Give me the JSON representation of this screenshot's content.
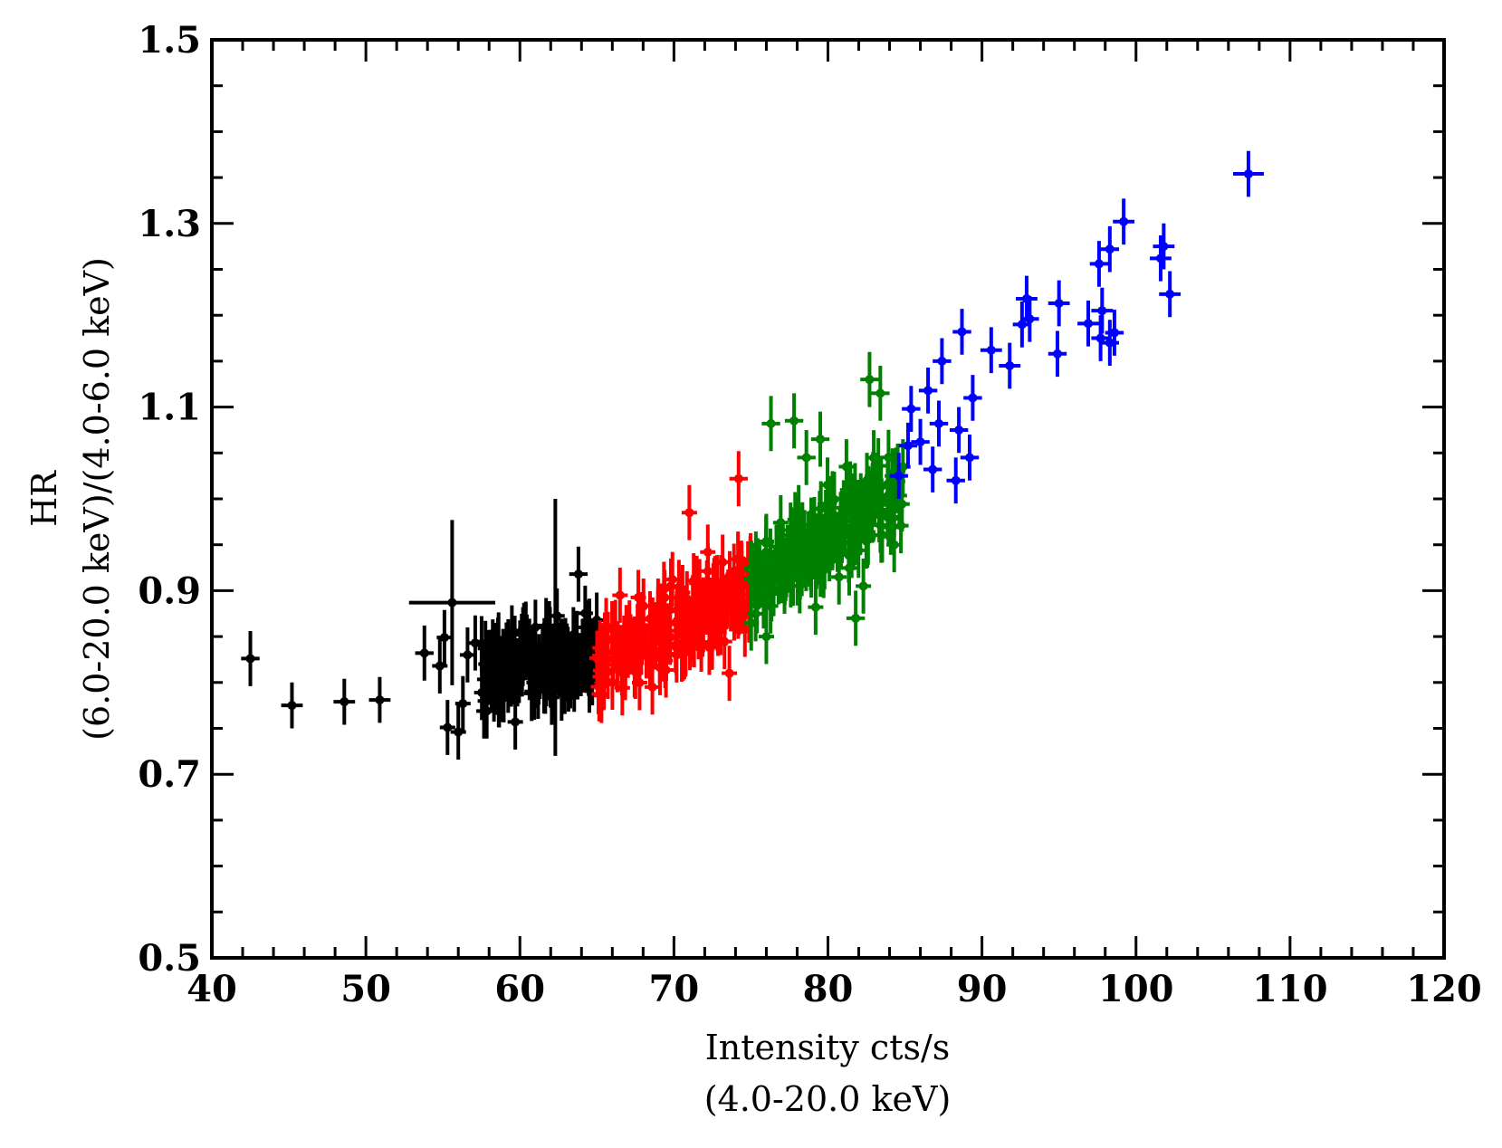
{
  "chart_data": {
    "type": "scatter",
    "title": "",
    "xlabel": [
      "Intensity cts/s",
      "(4.0-20.0 keV)"
    ],
    "ylabel": [
      "HR",
      "(6.0-20.0 keV)/(4.0-6.0 keV)"
    ],
    "xlim": [
      40,
      120
    ],
    "ylim": [
      0.5,
      1.5
    ],
    "x_ticks": [
      40,
      50,
      60,
      70,
      80,
      90,
      100,
      110,
      120
    ],
    "y_ticks": [
      0.5,
      0.7,
      0.9,
      1.1,
      1.3,
      1.5
    ],
    "x_tick_labels": [
      "40",
      "50",
      "60",
      "70",
      "80",
      "90",
      "100",
      "110",
      "120"
    ],
    "y_tick_labels": [
      "0.5",
      "0.7",
      "0.9",
      "1.1",
      "1.3",
      "1.5"
    ],
    "grid": false,
    "error_bars": true,
    "series": [
      {
        "name": "black",
        "color": "#000000",
        "points": [
          [
            42.5,
            0.826,
            0.6,
            0.03
          ],
          [
            45.2,
            0.775,
            0.7,
            0.025
          ],
          [
            48.6,
            0.779,
            0.7,
            0.025
          ],
          [
            50.9,
            0.781,
            0.7,
            0.025
          ],
          [
            55.6,
            0.887,
            2.8,
            0.09
          ],
          [
            62.3,
            0.86,
            0.5,
            0.14
          ],
          [
            63.8,
            0.918,
            0.6,
            0.03
          ],
          [
            53.8,
            0.832,
            0.6,
            0.03
          ],
          [
            54.8,
            0.818,
            0.5,
            0.03
          ],
          [
            55.1,
            0.849,
            0.5,
            0.03
          ],
          [
            55.3,
            0.751,
            0.5,
            0.03
          ],
          [
            56.0,
            0.746,
            0.5,
            0.03
          ],
          [
            56.3,
            0.777,
            0.5,
            0.03
          ],
          [
            56.6,
            0.83,
            0.5,
            0.03
          ],
          [
            57.1,
            0.843,
            0.5,
            0.03
          ],
          [
            57.8,
            0.82,
            0.5,
            0.03
          ],
          [
            58.4,
            0.835,
            0.5,
            0.03
          ],
          [
            58.9,
            0.812,
            0.5,
            0.03
          ],
          [
            59.7,
            0.757,
            0.5,
            0.03
          ],
          [
            60.2,
            0.852,
            0.5,
            0.03
          ],
          [
            60.8,
            0.83,
            0.5,
            0.03
          ],
          [
            61.3,
            0.812,
            0.5,
            0.03
          ],
          [
            61.7,
            0.862,
            0.5,
            0.03
          ],
          [
            62.1,
            0.79,
            0.5,
            0.03
          ],
          [
            62.6,
            0.835,
            0.5,
            0.03
          ],
          [
            63.2,
            0.815,
            0.5,
            0.03
          ],
          [
            63.7,
            0.848,
            0.5,
            0.03
          ],
          [
            64.3,
            0.828,
            0.5,
            0.03
          ],
          [
            64.7,
            0.805,
            0.5,
            0.03
          ]
        ]
      },
      {
        "name": "red",
        "color": "#ff0000",
        "points": [
          [
            74.2,
            1.022,
            0.6,
            0.03
          ],
          [
            71.0,
            0.985,
            0.5,
            0.03
          ],
          [
            66.5,
            0.895,
            0.5,
            0.03
          ],
          [
            67.5,
            0.812,
            0.5,
            0.03
          ],
          [
            68.6,
            0.795,
            0.5,
            0.03
          ],
          [
            69.8,
            0.905,
            0.5,
            0.03
          ],
          [
            70.6,
            0.832,
            0.5,
            0.03
          ],
          [
            72.2,
            0.942,
            0.5,
            0.03
          ],
          [
            72.9,
            0.875,
            0.5,
            0.03
          ],
          [
            73.6,
            0.81,
            0.5,
            0.03
          ],
          [
            74.4,
            0.922,
            0.5,
            0.03
          ],
          [
            65.6,
            0.862,
            0.5,
            0.03
          ]
        ]
      },
      {
        "name": "green",
        "color": "#008000",
        "points": [
          [
            76.3,
            1.082,
            0.6,
            0.03
          ],
          [
            77.8,
            1.085,
            0.6,
            0.03
          ],
          [
            78.6,
            1.045,
            0.6,
            0.03
          ],
          [
            79.5,
            1.065,
            0.6,
            0.03
          ],
          [
            82.7,
            1.13,
            0.6,
            0.03
          ],
          [
            83.4,
            1.115,
            0.6,
            0.03
          ],
          [
            81.8,
            0.87,
            0.6,
            0.03
          ],
          [
            76.0,
            0.85,
            0.5,
            0.03
          ],
          [
            77.2,
            0.915,
            0.5,
            0.03
          ],
          [
            78.1,
            0.985,
            0.5,
            0.03
          ],
          [
            79.2,
            0.882,
            0.5,
            0.03
          ],
          [
            80.3,
            0.955,
            0.5,
            0.03
          ],
          [
            81.2,
            1.035,
            0.5,
            0.03
          ],
          [
            82.3,
            0.905,
            0.5,
            0.03
          ],
          [
            83.5,
            0.985,
            0.5,
            0.03
          ],
          [
            84.3,
            0.95,
            0.5,
            0.03
          ]
        ]
      },
      {
        "name": "blue",
        "color": "#0000ff",
        "points": [
          [
            107.3,
            1.354,
            1.0,
            0.025
          ],
          [
            99.2,
            1.302,
            0.7,
            0.025
          ],
          [
            101.8,
            1.275,
            0.7,
            0.025
          ],
          [
            101.6,
            1.262,
            0.7,
            0.025
          ],
          [
            98.3,
            1.272,
            0.6,
            0.025
          ],
          [
            97.6,
            1.256,
            0.6,
            0.025
          ],
          [
            102.2,
            1.223,
            0.7,
            0.025
          ],
          [
            92.9,
            1.218,
            0.7,
            0.025
          ],
          [
            95.0,
            1.213,
            0.7,
            0.025
          ],
          [
            97.8,
            1.205,
            0.7,
            0.025
          ],
          [
            96.9,
            1.191,
            0.7,
            0.025
          ],
          [
            93.1,
            1.196,
            0.6,
            0.025
          ],
          [
            98.6,
            1.181,
            0.6,
            0.025
          ],
          [
            98.3,
            1.17,
            0.6,
            0.025
          ],
          [
            97.7,
            1.175,
            0.6,
            0.025
          ],
          [
            94.9,
            1.158,
            0.6,
            0.025
          ],
          [
            92.6,
            1.19,
            0.6,
            0.025
          ],
          [
            90.6,
            1.162,
            0.7,
            0.025
          ],
          [
            91.8,
            1.145,
            0.7,
            0.025
          ],
          [
            88.7,
            1.182,
            0.6,
            0.025
          ],
          [
            87.4,
            1.15,
            0.6,
            0.025
          ],
          [
            86.5,
            1.118,
            0.6,
            0.025
          ],
          [
            85.4,
            1.098,
            0.6,
            0.025
          ],
          [
            89.4,
            1.11,
            0.6,
            0.025
          ],
          [
            88.5,
            1.075,
            0.6,
            0.025
          ],
          [
            87.2,
            1.082,
            0.6,
            0.025
          ],
          [
            86.0,
            1.062,
            0.6,
            0.025
          ],
          [
            89.2,
            1.045,
            0.6,
            0.025
          ],
          [
            88.3,
            1.02,
            0.6,
            0.025
          ],
          [
            86.8,
            1.032,
            0.6,
            0.025
          ],
          [
            85.2,
            1.058,
            0.6,
            0.025
          ],
          [
            84.6,
            1.025,
            0.6,
            0.025
          ]
        ]
      }
    ]
  }
}
